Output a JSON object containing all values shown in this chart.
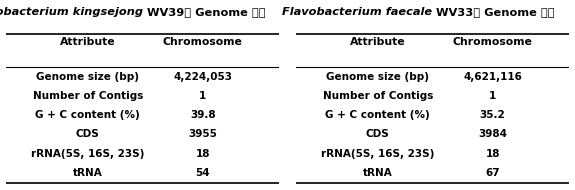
{
  "table1": {
    "title_italic": "Flavobacterium kingsejong",
    "title_normal": " WV39번 Genome 특징",
    "col_headers": [
      "Attribute",
      "Chromosome"
    ],
    "rows": [
      [
        "Genome size (bp)",
        "4,224,053"
      ],
      [
        "Number of Contigs",
        "1"
      ],
      [
        "G + C content (%)",
        "39.8"
      ],
      [
        "CDS",
        "3955"
      ],
      [
        "rRNA(5S, 16S, 23S)",
        "18"
      ],
      [
        "tRNA",
        "54"
      ]
    ]
  },
  "table2": {
    "title_italic": "Flavobacterium faecale",
    "title_normal": " WV33번 Genome 특징",
    "col_headers": [
      "Attribute",
      "Chromosome"
    ],
    "rows": [
      [
        "Genome size (bp)",
        "4,621,116"
      ],
      [
        "Number of Contigs",
        "1"
      ],
      [
        "G + C content (%)",
        "35.2"
      ],
      [
        "CDS",
        "3984"
      ],
      [
        "rRNA(5S, 16S, 23S)",
        "18"
      ],
      [
        "tRNA",
        "67"
      ]
    ]
  },
  "bg_color": "#ffffff",
  "line_color": "#000000",
  "text_color": "#000000",
  "title_fontsize": 8.2,
  "header_fontsize": 7.8,
  "cell_fontsize": 7.5
}
